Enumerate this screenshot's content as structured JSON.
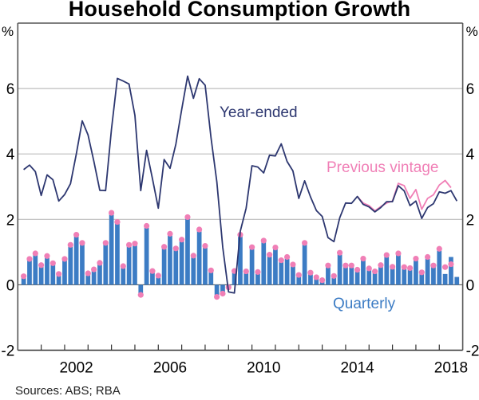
{
  "chart_data": {
    "type": "bar+line",
    "title": "Household Consumption Growth",
    "source": "Sources: ABS; RBA",
    "ylabel_left": "%",
    "ylabel_right": "%",
    "ylim": [
      -2,
      8
    ],
    "yticks": [
      -2,
      0,
      2,
      4,
      6
    ],
    "yticks_right": [
      -2,
      0,
      2,
      4,
      6
    ],
    "xlim": [
      2000,
      2019
    ],
    "xtick_labels": [
      "2002",
      "2006",
      "2010",
      "2014",
      "2018"
    ],
    "xtick_label_years": [
      2002,
      2006,
      2010,
      2014,
      2018
    ],
    "grid": true,
    "x_start": 2000.25,
    "x_step": 0.25,
    "colors": {
      "bars": "#3c7cc4",
      "bar_dots": "#f07fb6",
      "year_ended": "#2d3770",
      "previous_vintage": "#f07fb6",
      "grid": "#bdbdbd",
      "axis": "#555555"
    },
    "annotations": [
      {
        "text": "Year-ended",
        "series": "year_ended",
        "color": "#2d3770"
      },
      {
        "text": "Previous vintage",
        "series": "previous_vintage",
        "color": "#f07fb6"
      },
      {
        "text": "Quarterly",
        "series": "quarterly",
        "color": "#3c7cc4"
      }
    ],
    "series": [
      {
        "name": "Quarterly",
        "type": "bar",
        "values": [
          0.26,
          0.79,
          0.96,
          0.6,
          0.88,
          0.66,
          0.33,
          0.79,
          1.22,
          1.53,
          1.28,
          0.35,
          0.47,
          0.67,
          1.28,
          2.2,
          1.92,
          0.57,
          1.22,
          1.26,
          -0.31,
          1.8,
          0.42,
          0.28,
          1.16,
          1.56,
          1.11,
          1.38,
          2.07,
          0.89,
          1.69,
          1.19,
          0.44,
          -0.37,
          -0.27,
          -0.05,
          0.42,
          1.53,
          0.41,
          1.15,
          0.39,
          1.35,
          0.92,
          1.14,
          0.75,
          0.85,
          0.62,
          0.3,
          1.28,
          0.37,
          0.23,
          0.14,
          0.59,
          0.27,
          0.98,
          0.59,
          0.59,
          0.46,
          0.8,
          0.5,
          0.41,
          0.6,
          0.91,
          0.55,
          0.96,
          0.54,
          0.51,
          0.8,
          0.38,
          0.85,
          0.59,
          1.1,
          0.33,
          0.85,
          0.24
        ]
      },
      {
        "name": "Quarterly (previous vintage)",
        "type": "dot",
        "values": [
          0.26,
          0.79,
          0.96,
          0.6,
          0.88,
          0.66,
          0.33,
          0.79,
          1.22,
          1.53,
          1.28,
          0.35,
          0.47,
          0.67,
          1.28,
          2.2,
          1.92,
          0.57,
          1.22,
          1.26,
          -0.31,
          1.8,
          0.42,
          0.28,
          1.16,
          1.56,
          1.11,
          1.38,
          2.07,
          0.89,
          1.69,
          1.19,
          0.44,
          -0.37,
          -0.27,
          -0.08,
          0.42,
          1.53,
          0.41,
          1.15,
          0.39,
          1.35,
          0.92,
          1.14,
          0.75,
          0.85,
          0.62,
          0.3,
          1.28,
          0.37,
          0.23,
          0.14,
          0.59,
          0.27,
          0.98,
          0.59,
          0.59,
          0.46,
          0.8,
          0.5,
          0.41,
          0.6,
          0.91,
          0.55,
          0.96,
          0.54,
          0.51,
          0.8,
          0.38,
          0.85,
          0.59,
          1.1,
          0.54,
          0.63,
          null
        ]
      },
      {
        "name": "Year-ended",
        "type": "line",
        "values": [
          3.52,
          3.66,
          3.46,
          2.73,
          3.36,
          3.21,
          2.56,
          2.76,
          3.09,
          4.0,
          5.01,
          4.58,
          3.77,
          2.89,
          2.88,
          4.75,
          6.31,
          6.23,
          6.14,
          5.18,
          2.88,
          4.11,
          3.24,
          2.34,
          3.83,
          3.56,
          4.3,
          5.36,
          6.38,
          5.7,
          6.3,
          6.1,
          4.5,
          3.15,
          1.15,
          -0.22,
          -0.25,
          1.64,
          2.34,
          3.64,
          3.6,
          3.42,
          3.96,
          3.94,
          4.31,
          3.77,
          3.48,
          2.64,
          3.18,
          2.69,
          2.27,
          2.09,
          1.44,
          1.32,
          2.05,
          2.5,
          2.49,
          2.7,
          2.46,
          2.38,
          2.23,
          2.36,
          2.54,
          2.54,
          3.03,
          2.87,
          2.42,
          2.56,
          2.03,
          2.36,
          2.48,
          2.84,
          2.8,
          2.88,
          2.56
        ]
      },
      {
        "name": "Previous vintage",
        "type": "line",
        "start_index": 57,
        "values": [
          2.7,
          2.5,
          2.42,
          2.26,
          2.39,
          2.5,
          2.56,
          3.1,
          3.03,
          2.64,
          2.91,
          2.31,
          2.64,
          2.75,
          3.05,
          3.19,
          2.97
        ]
      }
    ]
  }
}
